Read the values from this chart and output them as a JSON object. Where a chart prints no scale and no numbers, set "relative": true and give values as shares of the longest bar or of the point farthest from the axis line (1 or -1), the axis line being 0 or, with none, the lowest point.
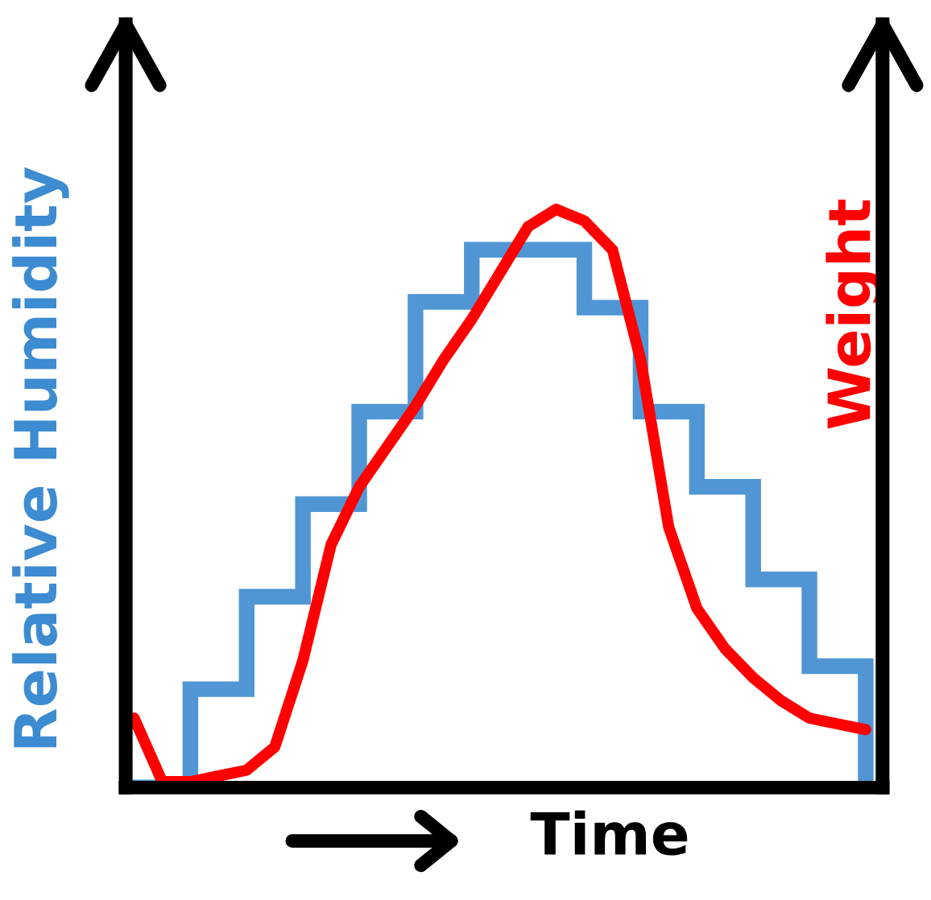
{
  "chart_data": {
    "type": "step",
    "relative": true,
    "xlabel": "Time",
    "ylabel": "Relative Humidity",
    "y2label": "Weight",
    "categories": [
      null,
      null,
      null,
      null,
      null,
      null,
      null,
      null,
      null,
      null,
      null,
      null,
      null,
      null,
      null,
      null,
      null,
      null,
      null,
      null,
      null,
      null,
      null,
      null,
      null,
      null,
      null
    ],
    "series": [
      {
        "color": "#3d8bd0",
        "values": [
          0,
          0,
          0.17,
          0.17,
          0.33,
          0.33,
          0.49,
          0.49,
          0.65,
          0.65,
          0.84,
          0.84,
          0.93,
          0.93,
          0.93,
          0.93,
          0.83,
          0.83,
          0.65,
          0.65,
          0.52,
          0.52,
          0.36,
          0.36,
          0.21,
          0.21,
          0
        ]
      },
      {
        "type": "line",
        "color": "#ff0000",
        "values": [
          0.12,
          0.01,
          0.01,
          0.02,
          0.03,
          0.07,
          0.22,
          0.42,
          0.52,
          0.59,
          0.66,
          0.74,
          0.81,
          0.89,
          0.97,
          1.0,
          0.98,
          0.93,
          0.74,
          0.45,
          0.31,
          0.24,
          0.19,
          0.15,
          0.12,
          0.11,
          0.1
        ]
      }
    ]
  }
}
